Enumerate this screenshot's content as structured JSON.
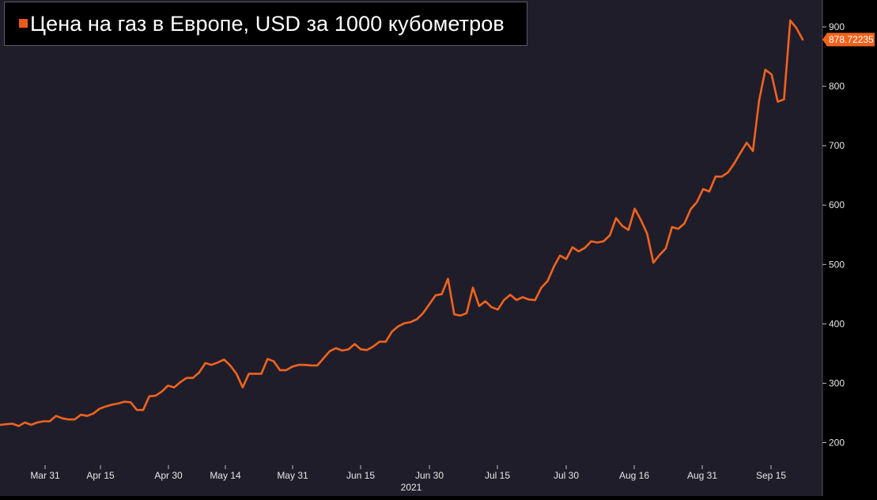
{
  "window": {
    "title": "Цена на газ в Европе, USD за 1000 кубометров"
  },
  "colors": {
    "background": "#000000",
    "plot_background": "#201d2b",
    "line": "#f0641e",
    "title_swatch": "#f05a1a",
    "axis_text": "#e6e6e6"
  },
  "last_value_label": "878.72235",
  "chart_data": {
    "type": "line",
    "title": "Цена на газ в Европе, USD за 1000 кубометров",
    "xlabel": "",
    "ylabel": "",
    "year_label": "2021",
    "legend": "top-left",
    "grid": false,
    "ylim": [
      180,
      940
    ],
    "y_ticks": [
      200,
      300,
      400,
      500,
      600,
      700,
      800,
      900
    ],
    "x_tick_labels": [
      "Mar 31",
      "Apr 15",
      "Apr 30",
      "May 14",
      "May 31",
      "Jun 15",
      "Jun 30",
      "Jul 15",
      "Jul 30",
      "Aug 16",
      "Aug 31",
      "Sep 15"
    ],
    "series": [
      {
        "name": "Цена на газ в Европе, USD за 1000 кубометров",
        "last_value": 878.72235,
        "values": [
          230,
          231,
          232,
          228,
          234,
          230,
          234,
          236,
          236,
          245,
          241,
          239,
          239,
          247,
          245,
          249,
          257,
          261,
          264,
          266,
          269,
          268,
          255,
          255,
          278,
          279,
          286,
          296,
          293,
          302,
          309,
          309,
          318,
          334,
          331,
          335,
          340,
          330,
          316,
          293,
          316,
          316,
          316,
          341,
          337,
          322,
          322,
          328,
          331,
          331,
          330,
          330,
          342,
          354,
          359,
          355,
          357,
          366,
          357,
          356,
          362,
          370,
          370,
          387,
          396,
          401,
          403,
          408,
          418,
          433,
          448,
          450,
          476,
          416,
          414,
          418,
          461,
          430,
          438,
          428,
          424,
          440,
          449,
          440,
          445,
          441,
          440,
          461,
          472,
          496,
          515,
          509,
          529,
          522,
          528,
          539,
          537,
          539,
          549,
          578,
          565,
          558,
          594,
          575,
          552,
          503,
          516,
          527,
          563,
          560,
          569,
          593,
          605,
          627,
          623,
          648,
          648,
          655,
          670,
          688,
          705,
          691,
          776,
          828,
          820,
          774,
          778,
          911,
          898,
          878.72
        ]
      }
    ]
  }
}
